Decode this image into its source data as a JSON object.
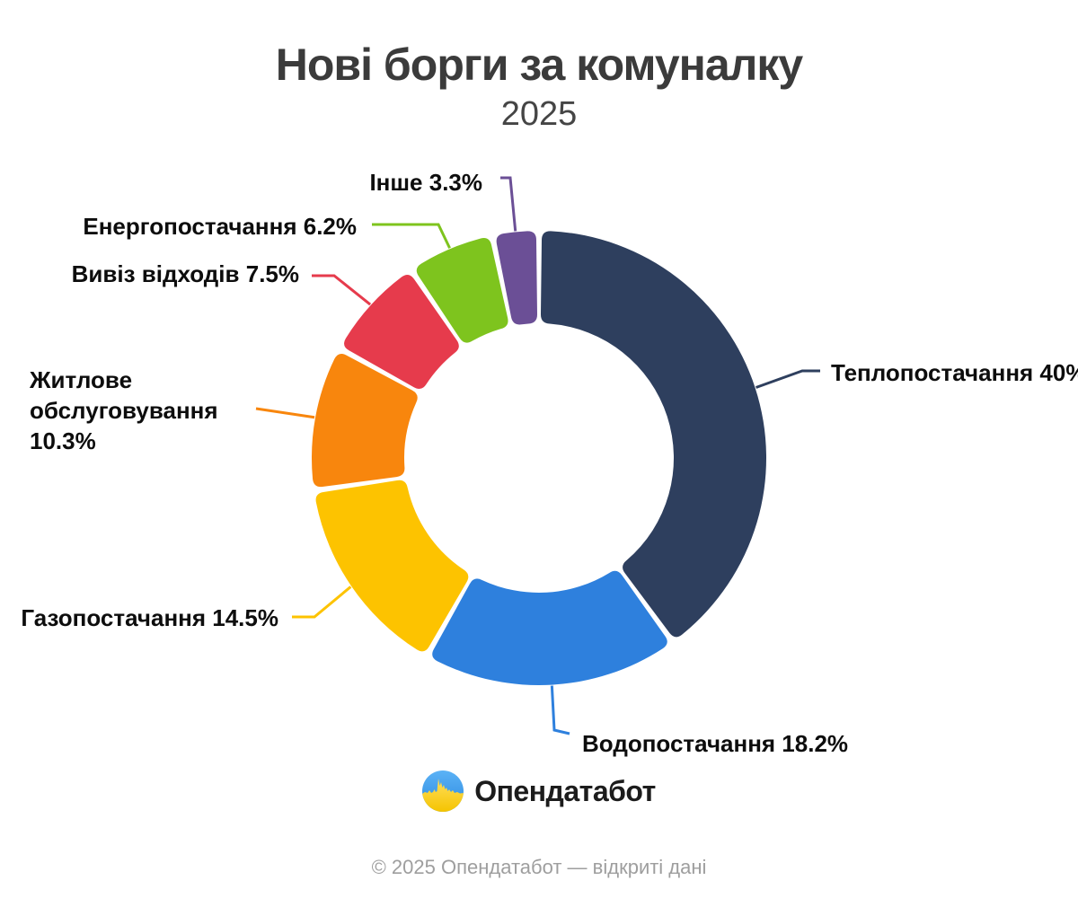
{
  "title": "Нові борги за комуналку",
  "subtitle": "2025",
  "chart_data": {
    "type": "pie",
    "subtype": "donut",
    "title": "Нові борги за комуналку",
    "period": "2025",
    "unit": "%",
    "direction": "clockwise",
    "start_angle_deg": 0,
    "legend_position": "callout-labels",
    "slices": [
      {
        "label": "Теплопостачання",
        "value": 40,
        "color": "#2E3F5E"
      },
      {
        "label": "Водопостачання",
        "value": 18.2,
        "color": "#2E80DD"
      },
      {
        "label": "Газопостачання",
        "value": 14.5,
        "color": "#FDC300"
      },
      {
        "label": "Житлове обслуговування",
        "value": 10.3,
        "color": "#F8860D"
      },
      {
        "label": "Вивіз відходів",
        "value": 7.5,
        "color": "#E63B4C"
      },
      {
        "label": "Енергопостачання",
        "value": 6.2,
        "color": "#7EC41E"
      },
      {
        "label": "Інше",
        "value": 3.3,
        "color": "#6B4F96"
      }
    ]
  },
  "branding": {
    "logo_text": "Опендатабот",
    "logo_icon": "opendatabot-flag-pulse-circle",
    "flag_blue": "#3D9BEE",
    "flag_yellow": "#FCCF3A"
  },
  "footer": "© 2025 Опендатабот — відкриті дані"
}
